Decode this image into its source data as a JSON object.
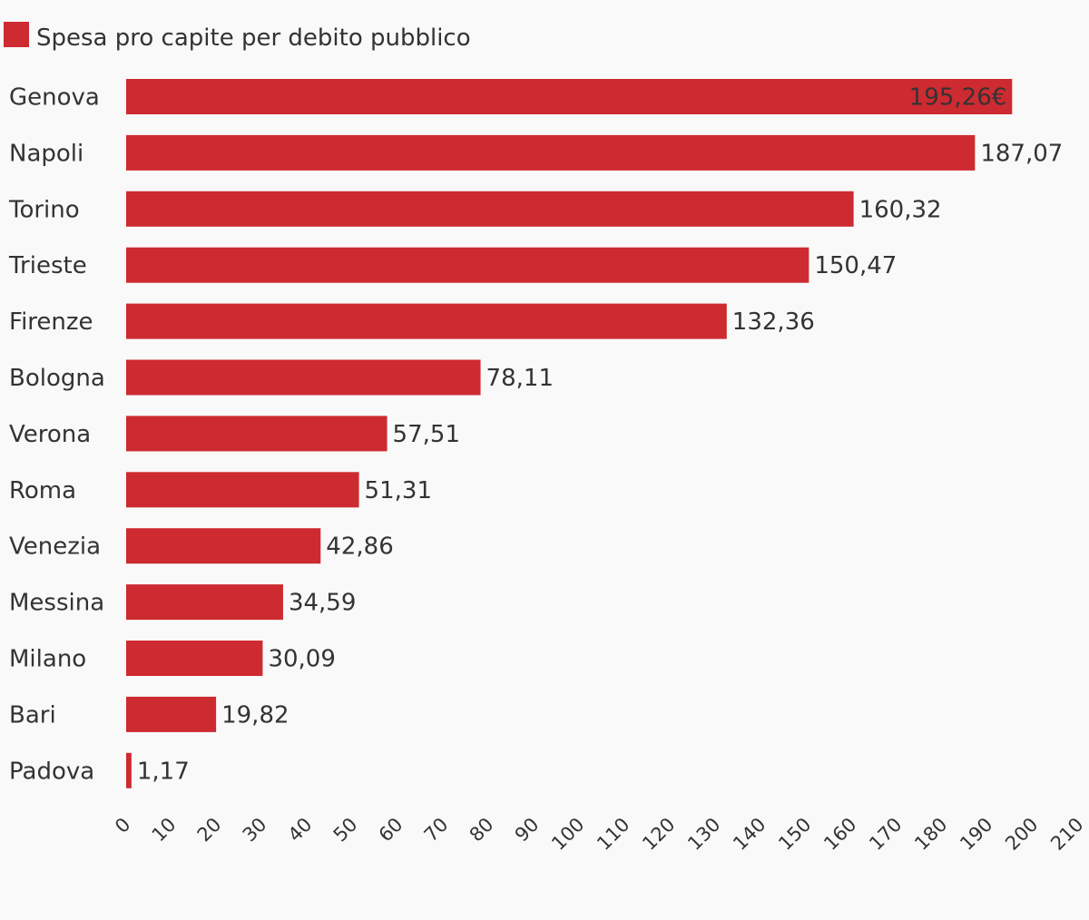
{
  "chart_data": {
    "type": "bar",
    "orientation": "horizontal",
    "legend": {
      "placement": "top-left",
      "entries": [
        "Spesa pro capite per debito pubblico"
      ]
    },
    "categories": [
      "Genova",
      "Napoli",
      "Torino",
      "Trieste",
      "Firenze",
      "Bologna",
      "Verona",
      "Roma",
      "Venezia",
      "Messina",
      "Milano",
      "Bari",
      "Padova"
    ],
    "series": [
      {
        "name": "Spesa pro capite per debito pubblico",
        "color": "#ce2a31",
        "values": [
          195.26,
          187.07,
          160.32,
          150.47,
          132.36,
          78.11,
          57.51,
          51.31,
          42.86,
          34.59,
          30.09,
          19.82,
          1.17
        ],
        "value_labels": [
          "195,26€",
          "187,07",
          "160,32",
          "150,47",
          "132,36",
          "78,11",
          "57,51",
          "51,31",
          "42,86",
          "34,59",
          "30,09",
          "19,82",
          "1,17"
        ]
      }
    ],
    "xlim": [
      0,
      210
    ],
    "x_ticks": [
      "0",
      "10",
      "20",
      "30",
      "40",
      "50",
      "60",
      "70",
      "80",
      "90",
      "100",
      "110",
      "120",
      "130",
      "140",
      "150",
      "160",
      "170",
      "180",
      "190",
      "200",
      "210"
    ],
    "grid": false
  },
  "colors": {
    "background": "#f9f9f9",
    "bar": "#ce2a31",
    "text": "#333333"
  }
}
